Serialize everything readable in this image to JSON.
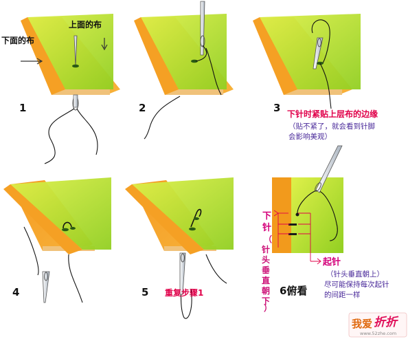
{
  "colors": {
    "top_cloth_light": "#cce63a",
    "top_cloth_dark": "#8fcc1e",
    "bottom_cloth": "#f7a22b",
    "bottom_cloth_dark": "#f08a12",
    "cloth_edge": "#f0c070",
    "needle": "#d8e0e8",
    "thread": "#111111",
    "red_text": "#e0004a",
    "purple_text": "#4a2a9a"
  },
  "panel1": {
    "step": "1",
    "label_top": "上面的布",
    "label_bottom": "下面的布"
  },
  "panel2": {
    "step": "2"
  },
  "panel3": {
    "step": "3",
    "note_title": "下针时紧贴上层布的边缘",
    "note_line1": "（贴不紧了，就会看到针脚",
    "note_line2": "会影响美观）"
  },
  "panel4": {
    "step": "4"
  },
  "panel5": {
    "step": "5",
    "note": "重复步骤1"
  },
  "panel6": {
    "step": "6俯看",
    "down_label": "下针",
    "down_sub": "（针头垂直朝下）",
    "up_label": "起针",
    "up_line1": "（针头垂直朝上）",
    "up_line2": "尽可能保持每次起针",
    "up_line3": "的间距一样"
  },
  "watermark": {
    "main": "我爱",
    "accent": "折折",
    "sub": "www.52zhe.com"
  }
}
